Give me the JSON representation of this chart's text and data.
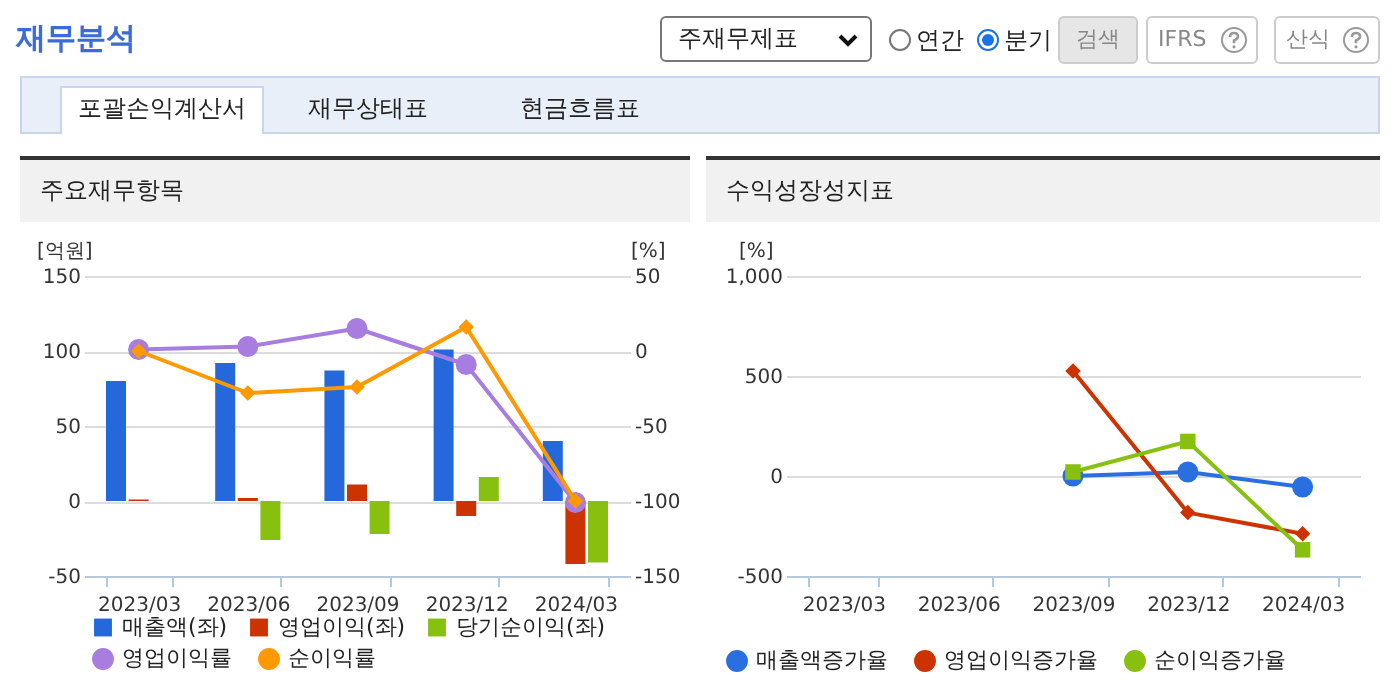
{
  "chart_data": [
    {
      "type": "other",
      "title": "재무분석",
      "annotations": [
        "주재무제표",
        "연간",
        "분기",
        "검색",
        "IFRS",
        "산식",
        "포괄손익계산서",
        "재무상태표",
        "현금흐름표"
      ]
    },
    {
      "type": "bar",
      "title": "주요재무항목",
      "categories": [
        "2023/03",
        "2023/06",
        "2023/09",
        "2023/12",
        "2024/03"
      ],
      "ylabel": "[억원]",
      "y2label": "[%]",
      "ylim": [
        -50,
        150
      ],
      "yticks": [
        -50,
        0,
        50,
        100,
        150
      ],
      "y2lim": [
        -150,
        50
      ],
      "y2ticks": [
        -150,
        -100,
        -50,
        0,
        50
      ],
      "grid": "y",
      "legend": "bottom",
      "series": [
        {
          "name": "매출액(좌)",
          "color": "#2468dc",
          "values": [
            80,
            92,
            87,
            101,
            40
          ]
        },
        {
          "name": "영업이익(좌)",
          "color": "#cc3300",
          "values": [
            1,
            2,
            11,
            -10,
            -42
          ]
        },
        {
          "name": "당기순이익(좌)",
          "color": "#88c010",
          "values": [
            0,
            -26,
            -22,
            16,
            -41
          ]
        },
        {
          "name": "영업이익률",
          "type": "line",
          "axis": "y2",
          "marker": "circle",
          "color": "#a77de0",
          "values": [
            1,
            3,
            15,
            -9,
            -101
          ]
        },
        {
          "name": "순이익률",
          "type": "line",
          "axis": "y2",
          "marker": "diamond",
          "color": "#ff9900",
          "values": [
            0,
            -28,
            -24,
            16,
            -100
          ]
        }
      ]
    },
    {
      "type": "line",
      "title": "수익성장성지표",
      "categories": [
        "2023/03",
        "2023/06",
        "2023/09",
        "2023/12",
        "2024/03"
      ],
      "ylabel": "[%]",
      "ylim": [
        -500,
        1000
      ],
      "yticks": [
        -500,
        0,
        500,
        {
          "value": 1000,
          "label": "1,000"
        }
      ],
      "grid": "y",
      "legend": "bottom",
      "series": [
        {
          "name": "매출액증가율",
          "marker": "circle",
          "color": "#2a6fe0",
          "values": [
            null,
            null,
            0,
            20,
            -55
          ]
        },
        {
          "name": "영업이익증가율",
          "marker": "diamond",
          "color": "#cc3300",
          "values": [
            null,
            null,
            525,
            -183,
            -289
          ]
        },
        {
          "name": "순이익증가율",
          "marker": "square",
          "color": "#88c010",
          "values": [
            null,
            null,
            20,
            173,
            -369
          ]
        }
      ]
    }
  ]
}
